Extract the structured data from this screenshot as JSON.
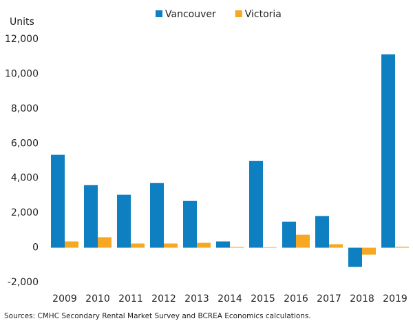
{
  "chart_data": {
    "type": "bar",
    "y_label": "Units",
    "source": "Sources: CMHC Secondary Rental Market Survey and BCREA Economics calculations.",
    "categories": [
      "2009",
      "2010",
      "2011",
      "2012",
      "2013",
      "2014",
      "2015",
      "2016",
      "2017",
      "2018",
      "2019"
    ],
    "series": [
      {
        "name": "Vancouver",
        "color": "#0e7fc0",
        "values": [
          5350,
          3600,
          3050,
          3720,
          2690,
          360,
          4990,
          1500,
          1820,
          -1110,
          11130
        ]
      },
      {
        "name": "Victoria",
        "color": "#f7a823",
        "values": [
          360,
          600,
          240,
          240,
          280,
          40,
          30,
          750,
          200,
          -400,
          50
        ]
      }
    ],
    "ylim": [
      -2000,
      12000
    ],
    "yticks": [
      {
        "value": -2000,
        "label": "-2,000"
      },
      0,
      {
        "value": 2000,
        "label": "2,000"
      },
      {
        "value": 4000,
        "label": "4,000"
      },
      {
        "value": 6000,
        "label": "6,000"
      },
      {
        "value": 8000,
        "label": "8,000"
      },
      {
        "value": 10000,
        "label": "10,000"
      },
      {
        "value": 12000,
        "label": "12,000"
      }
    ],
    "grid": false
  }
}
